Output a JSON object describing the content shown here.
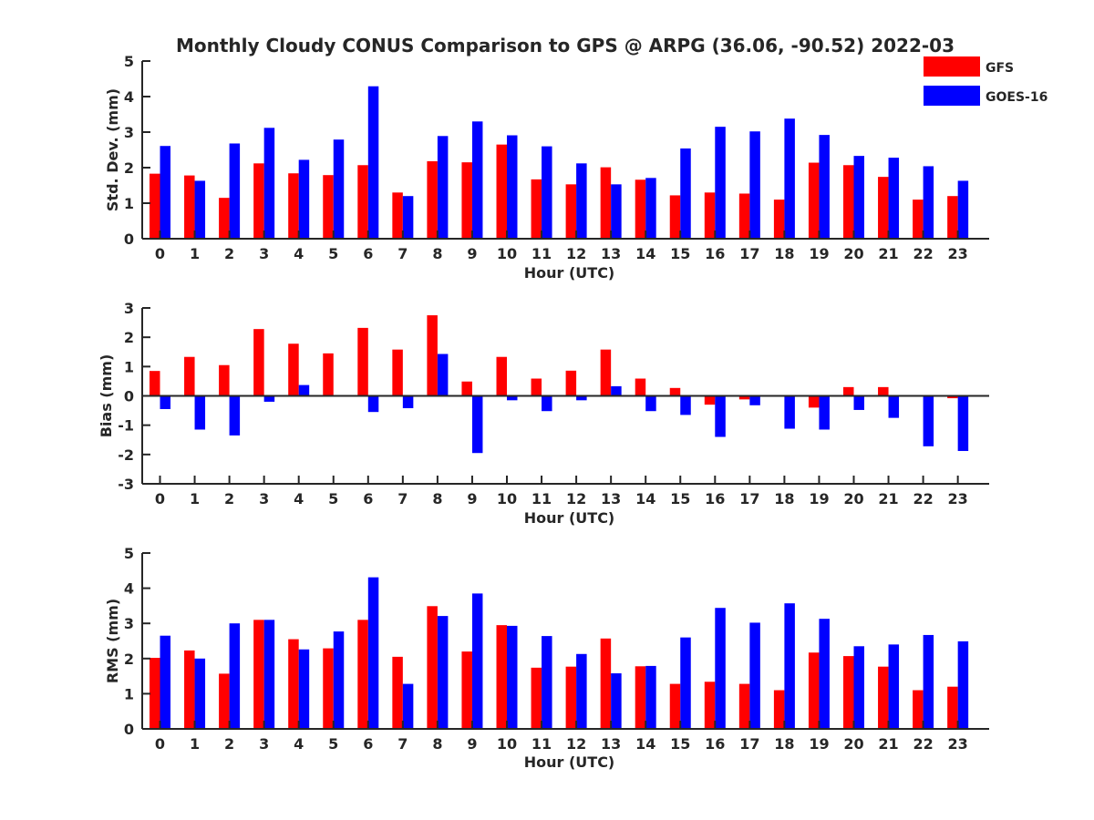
{
  "title": "Monthly Cloudy CONUS Comparison to GPS @ ARPG (36.06, -90.52) 2022-03",
  "legend": [
    {
      "label": "GFS",
      "color": "#ff0000"
    },
    {
      "label": "GOES-16",
      "color": "#0000ff"
    }
  ],
  "chart_data": [
    {
      "type": "bar",
      "xlabel": "Hour (UTC)",
      "ylabel": "Std. Dev. (mm)",
      "ylim": [
        0,
        5
      ],
      "yticks": [
        0,
        1,
        2,
        3,
        4,
        5
      ],
      "categories": [
        "0",
        "1",
        "2",
        "3",
        "4",
        "5",
        "6",
        "7",
        "8",
        "9",
        "10",
        "11",
        "12",
        "13",
        "14",
        "15",
        "16",
        "17",
        "18",
        "19",
        "20",
        "21",
        "22",
        "23"
      ],
      "series": [
        {
          "name": "GFS",
          "color": "#ff0000",
          "values": [
            1.83,
            1.78,
            1.15,
            2.12,
            1.84,
            1.79,
            2.07,
            1.3,
            2.18,
            2.15,
            2.65,
            1.67,
            1.53,
            2.01,
            1.66,
            1.22,
            1.3,
            1.27,
            1.1,
            2.14,
            2.07,
            1.74,
            1.1,
            1.2
          ]
        },
        {
          "name": "GOES-16",
          "color": "#0000ff",
          "values": [
            2.61,
            1.63,
            2.68,
            3.12,
            2.22,
            2.79,
            4.29,
            1.2,
            2.89,
            3.3,
            2.91,
            2.6,
            2.12,
            1.53,
            1.71,
            2.54,
            3.15,
            3.02,
            3.38,
            2.92,
            2.33,
            2.28,
            2.04,
            1.63
          ]
        }
      ]
    },
    {
      "type": "bar",
      "xlabel": "Hour (UTC)",
      "ylabel": "Bias (mm)",
      "ylim": [
        -3,
        3
      ],
      "yticks": [
        -3,
        -2,
        -1,
        0,
        1,
        2,
        3
      ],
      "categories": [
        "0",
        "1",
        "2",
        "3",
        "4",
        "5",
        "6",
        "7",
        "8",
        "9",
        "10",
        "11",
        "12",
        "13",
        "14",
        "15",
        "16",
        "17",
        "18",
        "19",
        "20",
        "21",
        "22",
        "23"
      ],
      "series": [
        {
          "name": "GFS",
          "color": "#ff0000",
          "values": [
            0.85,
            1.33,
            1.05,
            2.28,
            1.78,
            1.45,
            2.32,
            1.58,
            2.75,
            0.49,
            1.33,
            0.59,
            0.86,
            1.58,
            0.59,
            0.27,
            -0.3,
            -0.12,
            0.0,
            -0.4,
            0.3,
            0.3,
            0.0,
            -0.08
          ]
        },
        {
          "name": "GOES-16",
          "color": "#0000ff",
          "values": [
            -0.45,
            -1.15,
            -1.35,
            -0.2,
            0.37,
            0.0,
            -0.55,
            -0.42,
            1.43,
            -1.95,
            -0.15,
            -0.52,
            -0.15,
            0.33,
            -0.52,
            -0.65,
            -1.4,
            -0.32,
            -1.12,
            -1.15,
            -0.48,
            -0.75,
            -1.72,
            -1.88
          ]
        }
      ]
    },
    {
      "type": "bar",
      "xlabel": "Hour (UTC)",
      "ylabel": "RMS (mm)",
      "ylim": [
        0,
        5
      ],
      "yticks": [
        0,
        1,
        2,
        3,
        4,
        5
      ],
      "categories": [
        "0",
        "1",
        "2",
        "3",
        "4",
        "5",
        "6",
        "7",
        "8",
        "9",
        "10",
        "11",
        "12",
        "13",
        "14",
        "15",
        "16",
        "17",
        "18",
        "19",
        "20",
        "21",
        "22",
        "23"
      ],
      "series": [
        {
          "name": "GFS",
          "color": "#ff0000",
          "values": [
            2.02,
            2.23,
            1.57,
            3.1,
            2.55,
            2.29,
            3.1,
            2.05,
            3.49,
            2.2,
            2.95,
            1.74,
            1.77,
            2.57,
            1.78,
            1.28,
            1.34,
            1.28,
            1.1,
            2.17,
            2.07,
            1.77,
            1.1,
            1.2
          ]
        },
        {
          "name": "GOES-16",
          "color": "#0000ff",
          "values": [
            2.65,
            2.0,
            3.0,
            3.1,
            2.26,
            2.77,
            4.31,
            1.28,
            3.21,
            3.85,
            2.93,
            2.64,
            2.13,
            1.58,
            1.79,
            2.6,
            3.44,
            3.02,
            3.57,
            3.13,
            2.35,
            2.4,
            2.67,
            2.49
          ]
        }
      ]
    }
  ]
}
